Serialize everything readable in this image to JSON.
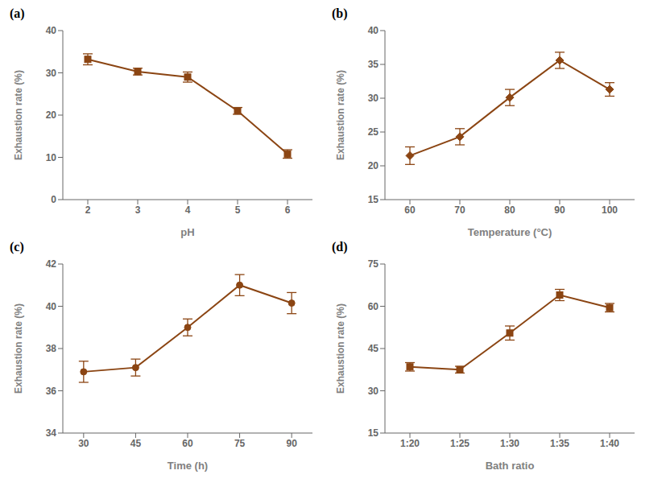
{
  "chart_data": [
    {
      "type": "line",
      "title": "(a)",
      "x": [
        2,
        3,
        4,
        5,
        6
      ],
      "values": [
        33.2,
        30.3,
        29.0,
        21.0,
        10.8
      ],
      "yerr": [
        1.3,
        0.8,
        1.2,
        0.8,
        1.0
      ],
      "xlabel": "pH",
      "ylabel": "Exhaustion rate (%)",
      "xlim": [
        1.5,
        6.5
      ],
      "xticks": [
        2,
        3,
        4,
        5,
        6
      ],
      "ylim": [
        0,
        40
      ],
      "yticks": [
        0,
        10,
        20,
        30,
        40
      ],
      "color": "#8B4513",
      "marker": "square",
      "grid": false
    },
    {
      "type": "line",
      "title": "(b)",
      "x": [
        60,
        70,
        80,
        90,
        100
      ],
      "values": [
        21.5,
        24.3,
        30.1,
        35.6,
        31.3
      ],
      "yerr": [
        1.3,
        1.2,
        1.2,
        1.2,
        1.0
      ],
      "xlabel": "Temperature (°C)",
      "ylabel": "Exhaustion rate (%)",
      "xlim": [
        55,
        105
      ],
      "xticks": [
        60,
        70,
        80,
        90,
        100
      ],
      "ylim": [
        15,
        40
      ],
      "yticks": [
        15,
        20,
        25,
        30,
        35,
        40
      ],
      "color": "#8B4513",
      "marker": "diamond",
      "grid": false
    },
    {
      "type": "line",
      "title": "(c)",
      "x": [
        30,
        45,
        60,
        75,
        90
      ],
      "values": [
        36.9,
        37.1,
        39.0,
        41.0,
        40.15
      ],
      "yerr": [
        0.5,
        0.4,
        0.4,
        0.5,
        0.5
      ],
      "xlabel": "Time (h)",
      "ylabel": "Exhaustion rate (%)",
      "xlim": [
        24,
        96
      ],
      "xticks": [
        30,
        45,
        60,
        75,
        90
      ],
      "ylim": [
        34,
        42
      ],
      "yticks": [
        34,
        36,
        38,
        40,
        42
      ],
      "color": "#8B4513",
      "marker": "circle",
      "grid": false
    },
    {
      "type": "line",
      "title": "(d)",
      "x": [
        1,
        2,
        3,
        4,
        5
      ],
      "values": [
        38.5,
        37.5,
        50.5,
        64.0,
        59.5
      ],
      "yerr": [
        1.5,
        1.2,
        2.5,
        2.0,
        1.5
      ],
      "xlabel": "Bath ratio",
      "ylabel": "Exhaustion rate (%)",
      "xlim": [
        0.5,
        5.5
      ],
      "xticks": [
        {
          "value": 1,
          "label": "1:20"
        },
        {
          "value": 2,
          "label": "1:25"
        },
        {
          "value": 3,
          "label": "1:30"
        },
        {
          "value": 4,
          "label": "1:35"
        },
        {
          "value": 5,
          "label": "1:40"
        }
      ],
      "ylim": [
        15,
        75
      ],
      "yticks": [
        15,
        30,
        45,
        60,
        75
      ],
      "color": "#8B4513",
      "marker": "square",
      "grid": false
    }
  ]
}
